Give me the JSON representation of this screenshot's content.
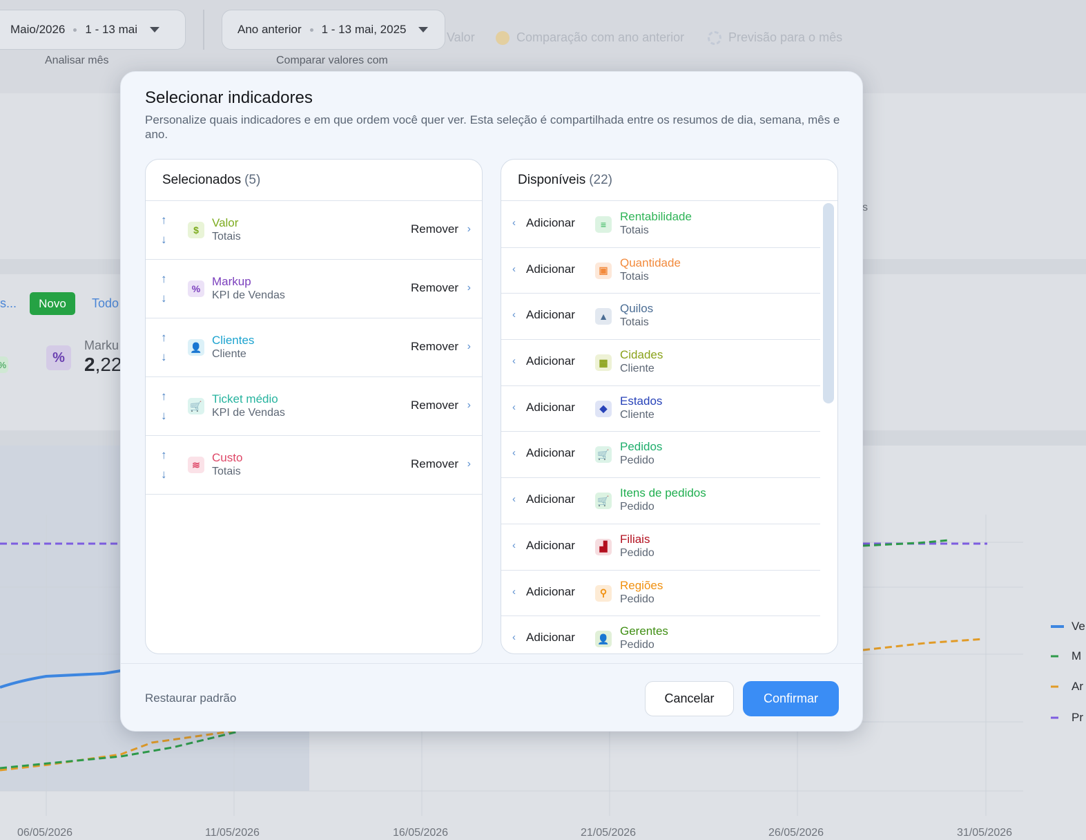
{
  "background": {
    "month_filter": {
      "value": "Maio/2026",
      "range": "1 - 13 mai",
      "label": "Analisar mês"
    },
    "compare_filter": {
      "value": "Ano anterior",
      "range": "1 - 13 mai, 2025",
      "label": "Comparar valores com"
    },
    "top_legend": [
      "Valor",
      "Comparação com ano anterior",
      "Previsão para o mês"
    ],
    "badge_new": "Novo",
    "link_todos": "Todo",
    "left_cut_text": "s...",
    "markup_label": "Marku",
    "markup_value_big": "2",
    "markup_value_rest": ",22",
    "right_cut_text": "s",
    "pct_symbol": "%",
    "x_axis_dates": [
      "06/05/2026",
      "11/05/2026",
      "16/05/2026",
      "21/05/2026",
      "26/05/2026",
      "31/05/2026"
    ],
    "legend_right": [
      "Ve",
      "M",
      "Ar",
      "Pr"
    ],
    "colors": {
      "line_value": "#3d86e0",
      "line_forecast": "#7d5de0",
      "line_prev_year": "#e19b27",
      "line_m": "#2e9a4a"
    }
  },
  "modal": {
    "title": "Selecionar indicadores",
    "description": "Personalize quais indicadores e em que ordem você quer ver. Esta seleção é compartilhada entre os resumos de dia, semana, mês e ano.",
    "selected": {
      "title": "Selecionados",
      "count": "(5)",
      "items": [
        {
          "name": "Valor",
          "category": "Totais",
          "action": "Remover",
          "color": "#7cab1e",
          "icon": "dollar-icon",
          "glyph": "$",
          "bg": "#e9f4d7"
        },
        {
          "name": "Markup",
          "category": "KPI de Vendas",
          "action": "Remover",
          "color": "#7b3fbd",
          "icon": "percent-icon",
          "glyph": "%",
          "bg": "#ece2f7"
        },
        {
          "name": "Clientes",
          "category": "Cliente",
          "action": "Remover",
          "color": "#1ca3cf",
          "icon": "user-icon",
          "glyph": "👤",
          "bg": "#dcf1f8"
        },
        {
          "name": "Ticket médio",
          "category": "KPI de Vendas",
          "action": "Remover",
          "color": "#26b39e",
          "icon": "cart-money-icon",
          "glyph": "🛒",
          "bg": "#dcf4ef"
        },
        {
          "name": "Custo",
          "category": "Totais",
          "action": "Remover",
          "color": "#de4767",
          "icon": "coins-icon",
          "glyph": "≋",
          "bg": "#fbe2e8"
        }
      ]
    },
    "available": {
      "title": "Disponíveis",
      "count": "(22)",
      "items": [
        {
          "name": "Rentabilidade",
          "category": "Totais",
          "action": "Adicionar",
          "color": "#2fb457",
          "icon": "money-stack-icon",
          "glyph": "≡",
          "bg": "#dcf3e2"
        },
        {
          "name": "Quantidade",
          "category": "Totais",
          "action": "Adicionar",
          "color": "#f28a3c",
          "icon": "box-icon",
          "glyph": "▣",
          "bg": "#fde8d9"
        },
        {
          "name": "Quilos",
          "category": "Totais",
          "action": "Adicionar",
          "color": "#4b6d94",
          "icon": "weight-icon",
          "glyph": "▲",
          "bg": "#e2e8f0"
        },
        {
          "name": "Cidades",
          "category": "Cliente",
          "action": "Adicionar",
          "color": "#8aa21a",
          "icon": "building-icon",
          "glyph": "▦",
          "bg": "#eef2d6"
        },
        {
          "name": "Estados",
          "category": "Cliente",
          "action": "Adicionar",
          "color": "#2742b8",
          "icon": "map-icon",
          "glyph": "◆",
          "bg": "#dfe4f6"
        },
        {
          "name": "Pedidos",
          "category": "Pedido",
          "action": "Adicionar",
          "color": "#1fae6c",
          "icon": "cart-icon",
          "glyph": "🛒",
          "bg": "#dcf3e8"
        },
        {
          "name": "Itens de pedidos",
          "category": "Pedido",
          "action": "Adicionar",
          "color": "#1fae4f",
          "icon": "cart-items-icon",
          "glyph": "🛒",
          "bg": "#dcf3e2"
        },
        {
          "name": "Filiais",
          "category": "Pedido",
          "action": "Adicionar",
          "color": "#b3101f",
          "icon": "factory-icon",
          "glyph": "▟",
          "bg": "#f6dde0"
        },
        {
          "name": "Regiões",
          "category": "Pedido",
          "action": "Adicionar",
          "color": "#f0900f",
          "icon": "regions-icon",
          "glyph": "⚲",
          "bg": "#fdebd5"
        },
        {
          "name": "Gerentes",
          "category": "Pedido",
          "action": "Adicionar",
          "color": "#3f8e13",
          "icon": "manager-icon",
          "glyph": "👤",
          "bg": "#e1f0d8"
        }
      ]
    },
    "footer": {
      "restore": "Restaurar padrão",
      "cancel": "Cancelar",
      "confirm": "Confirmar"
    }
  }
}
